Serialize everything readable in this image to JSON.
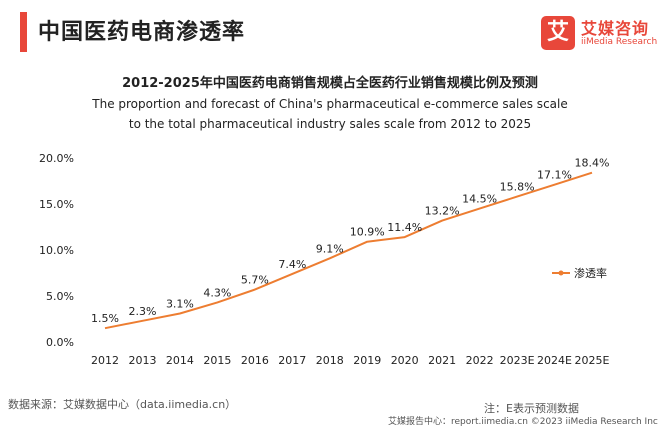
{
  "header": {
    "title": "中国医药电商渗透率",
    "logo_mark": "艾",
    "logo_name": "艾媒咨询",
    "logo_sub": "iiMedia Research"
  },
  "chart_data": {
    "type": "line",
    "title": "2012-2025年中国医药电商销售规模占全医药行业销售规模比例及预测",
    "subtitle": "The proportion and forecast of China's pharmaceutical e-commerce sales scale to the total pharmaceutical industry sales scale from 2012 to 2025",
    "categories": [
      "2012",
      "2013",
      "2014",
      "2015",
      "2016",
      "2017",
      "2018",
      "2019",
      "2020",
      "2021",
      "2022",
      "2023E",
      "2024E",
      "2025E"
    ],
    "series": [
      {
        "name": "渗透率",
        "values": [
          1.5,
          2.3,
          3.1,
          4.3,
          5.7,
          7.4,
          9.1,
          10.9,
          11.4,
          13.2,
          14.5,
          15.8,
          17.1,
          18.4
        ],
        "labels": [
          "1.5%",
          "2.3%",
          "3.1%",
          "4.3%",
          "5.7%",
          "7.4%",
          "9.1%",
          "10.9%",
          "11.4%",
          "13.2%",
          "14.5%",
          "15.8%",
          "17.1%",
          "18.4%"
        ],
        "color": "#ed7d31"
      }
    ],
    "ylim": [
      0,
      20
    ],
    "yticks": [
      0,
      5,
      10,
      15,
      20
    ],
    "ytick_labels": [
      "0.0%",
      "5.0%",
      "10.0%",
      "15.0%",
      "20.0%"
    ],
    "xlabel": "",
    "ylabel": "",
    "grid": false,
    "legend": "right"
  },
  "footer": {
    "source": "数据来源：艾媒数据中心（data.iimedia.cn）",
    "note": "注：E表示预测数据",
    "copyright": "艾媒报告中心：report.iimedia.cn  ©2023  iiMedia Research  Inc"
  },
  "colors": {
    "accent": "#e8473a",
    "line": "#ed7d31"
  }
}
